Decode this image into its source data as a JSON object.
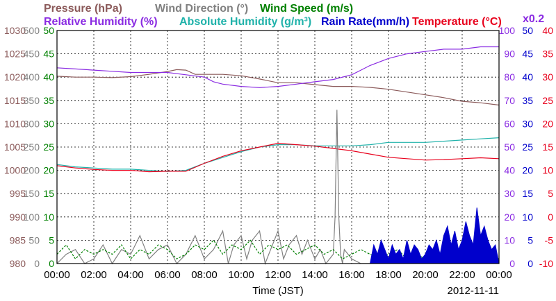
{
  "chart_data": {
    "type": "line",
    "legend_row1": [
      {
        "label": "Pressure (hPa)",
        "color": "#8b5a5a"
      },
      {
        "label": "Wind Direction (°)",
        "color": "#808080"
      },
      {
        "label": "Wind Speed (m/s)",
        "color": "#008000"
      }
    ],
    "legend_row2": [
      {
        "label": "Relative Humidity (%)",
        "color": "#8a2be2"
      },
      {
        "label": "Absolute Humidity (g/m³)",
        "color": "#20b2aa"
      },
      {
        "label": "Rain Rate(mm/h)",
        "color": "#0000cc"
      },
      {
        "label": "Temperature (°C)",
        "color": "#e8001c"
      }
    ],
    "rain_scale_note": "x0.2",
    "xlabel": "Time (JST)",
    "date": "2012-11-11",
    "x_ticks": [
      "00:00",
      "02:00",
      "04:00",
      "06:00",
      "08:00",
      "10:00",
      "12:00",
      "14:00",
      "16:00",
      "18:00",
      "20:00",
      "22:00",
      "00:00"
    ],
    "xlim_hours": [
      0,
      24
    ],
    "axes": {
      "pressure": {
        "color": "#8b5a5a",
        "ticks": [
          980,
          985,
          990,
          995,
          1000,
          1005,
          1010,
          1015,
          1020,
          1025,
          1030
        ],
        "range": [
          980,
          1030
        ]
      },
      "wind_direction": {
        "color": "#808080",
        "ticks": [
          0,
          50,
          100,
          150,
          200,
          250,
          300,
          350,
          400,
          450,
          500
        ],
        "range": [
          0,
          500
        ]
      },
      "wind_speed": {
        "color": "#008000",
        "ticks": [
          0,
          5,
          10,
          15,
          20,
          25,
          30,
          35,
          40,
          45,
          50
        ],
        "range": [
          0,
          50
        ]
      },
      "humidity": {
        "color": "#8a2be2",
        "ticks": [
          0,
          10,
          20,
          30,
          40,
          50,
          60,
          70,
          80,
          90,
          100
        ],
        "range": [
          0,
          100
        ]
      },
      "rain": {
        "color": "#0000cc",
        "ticks": [
          0,
          5,
          10,
          15,
          20,
          25,
          30,
          35,
          40,
          45,
          50
        ],
        "range": [
          0,
          50
        ]
      },
      "temperature": {
        "color": "#e8001c",
        "ticks": [
          -10,
          -5,
          0,
          5,
          10,
          15,
          20,
          25,
          30,
          35,
          40
        ],
        "range": [
          -10,
          40
        ]
      }
    },
    "series": [
      {
        "name": "Pressure (hPa)",
        "axis": "pressure",
        "color": "#8b5a5a",
        "x": [
          0,
          1,
          2,
          3,
          4,
          5,
          6,
          6.5,
          7,
          7.5,
          8,
          9,
          10,
          11,
          12,
          13,
          14,
          15,
          16,
          17,
          18,
          19,
          20,
          21,
          22,
          23,
          24
        ],
        "y": [
          1020.2,
          1020.0,
          1020.0,
          1019.9,
          1020.1,
          1020.6,
          1021.2,
          1021.6,
          1021.5,
          1020.6,
          1020.6,
          1020.6,
          1020.3,
          1019.6,
          1018.8,
          1018.8,
          1018.4,
          1018.0,
          1018.0,
          1017.8,
          1017.4,
          1016.8,
          1016.2,
          1015.6,
          1014.8,
          1014.5,
          1014.0
        ]
      },
      {
        "name": "Relative Humidity (%)",
        "axis": "humidity",
        "color": "#8a2be2",
        "x": [
          0,
          1,
          2,
          3,
          4,
          5,
          6,
          6.5,
          7,
          8,
          8.5,
          9,
          10,
          11,
          12,
          13,
          14,
          15,
          16,
          16.5,
          17,
          18,
          19,
          20,
          21,
          22,
          23,
          24
        ],
        "y": [
          84,
          83.5,
          83,
          82.5,
          82,
          82,
          82,
          81.5,
          81,
          80,
          78,
          77,
          76,
          75.5,
          76,
          77,
          78,
          79,
          81,
          83,
          85,
          88,
          90,
          91,
          92,
          92,
          93,
          93
        ]
      },
      {
        "name": "Absolute Humidity (g/m³)",
        "axis": "humidity",
        "color": "#20b2aa",
        "x": [
          0,
          1,
          2,
          3,
          4,
          5,
          6,
          7,
          8,
          9,
          10,
          11,
          12,
          13,
          14,
          15,
          16,
          17,
          18,
          19,
          20,
          21,
          22,
          23,
          24
        ],
        "y": [
          42.5,
          41.5,
          41,
          40.5,
          40.5,
          40,
          39.5,
          40,
          43,
          45.5,
          48,
          50,
          51,
          51,
          50.5,
          50.5,
          50.5,
          51,
          52,
          52,
          52,
          52.5,
          53,
          53.5,
          54
        ]
      },
      {
        "name": "Temperature (°C)",
        "axis": "temperature",
        "color": "#e8001c",
        "x": [
          0,
          1,
          2,
          3,
          4,
          5,
          6,
          7,
          8,
          9,
          10,
          11,
          12,
          13,
          14,
          15,
          16,
          17,
          18,
          19,
          20,
          21,
          22,
          23,
          24
        ],
        "y": [
          11,
          10.5,
          10.2,
          10,
          10,
          9.7,
          9.8,
          9.8,
          11.5,
          13,
          14.2,
          15,
          15.8,
          15.5,
          15.2,
          14.7,
          14.2,
          13.5,
          12.8,
          12.5,
          12.2,
          12.3,
          12.5,
          12.7,
          12.5
        ]
      },
      {
        "name": "Wind Direction (°)",
        "axis": "wind_direction",
        "color": "#808080",
        "x": [
          0,
          0.5,
          1,
          1.5,
          2,
          2.5,
          3,
          3.5,
          4,
          4.5,
          5,
          5.5,
          6,
          6.5,
          7,
          7.5,
          8,
          8.5,
          9,
          9.3,
          9.6,
          10,
          10.3,
          10.6,
          11,
          11.3,
          11.6,
          12,
          12.3,
          12.6,
          13,
          13.3,
          13.6,
          14,
          14.3,
          14.6,
          15,
          15.1,
          15.2,
          15.3,
          15.4,
          15.5,
          15.6,
          16,
          16.5,
          17
        ],
        "y": [
          0,
          20,
          30,
          0,
          10,
          40,
          0,
          30,
          20,
          60,
          10,
          30,
          40,
          0,
          20,
          60,
          10,
          30,
          70,
          0,
          40,
          60,
          10,
          50,
          70,
          0,
          30,
          70,
          10,
          40,
          60,
          20,
          50,
          10,
          30,
          0,
          20,
          100,
          330,
          100,
          20,
          0,
          30,
          10,
          0,
          0
        ]
      },
      {
        "name": "Wind Speed (m/s)",
        "axis": "wind_speed",
        "color": "#008000",
        "x": [
          0,
          0.5,
          1,
          1.5,
          2,
          2.5,
          3,
          3.5,
          4,
          4.5,
          5,
          5.5,
          6,
          6.5,
          7,
          7.5,
          8,
          8.5,
          9,
          9.5,
          10,
          10.5,
          11,
          11.5,
          12,
          12.5,
          13,
          13.5,
          14,
          14.5,
          15,
          15.5,
          16,
          16.5,
          17,
          17.5,
          18,
          18.5,
          19,
          19.5,
          20,
          20.5,
          21,
          21.5,
          22,
          22.5,
          23,
          23.5,
          24
        ],
        "y": [
          2,
          4,
          1,
          3,
          2,
          3,
          2,
          4,
          1,
          3,
          2,
          4,
          3,
          1,
          2,
          4,
          3,
          5,
          2,
          4,
          3,
          5,
          2,
          4,
          3,
          4,
          2,
          3,
          4,
          2,
          3,
          1,
          2,
          3,
          2,
          1,
          2,
          3,
          1,
          2,
          1,
          2,
          1,
          2,
          1,
          2,
          1,
          2,
          1
        ]
      },
      {
        "name": "Rain Rate(mm/h)",
        "axis": "rain",
        "color": "#0000cc",
        "x": [
          17.0,
          17.2,
          17.4,
          17.6,
          17.8,
          18.0,
          18.2,
          18.4,
          18.6,
          18.8,
          19.0,
          19.2,
          19.4,
          19.6,
          19.8,
          20.0,
          20.2,
          20.4,
          20.6,
          20.8,
          21.0,
          21.2,
          21.4,
          21.6,
          21.8,
          22.0,
          22.2,
          22.4,
          22.6,
          22.8,
          23.0,
          23.2,
          23.4,
          23.6,
          23.8,
          24.0
        ],
        "y": [
          0,
          4,
          2,
          5,
          3,
          1,
          4,
          2,
          3,
          1,
          5,
          2,
          4,
          3,
          1,
          2,
          4,
          3,
          5,
          2,
          6,
          8,
          4,
          7,
          3,
          5,
          9,
          6,
          4,
          12,
          6,
          8,
          5,
          3,
          4,
          0
        ]
      }
    ]
  }
}
